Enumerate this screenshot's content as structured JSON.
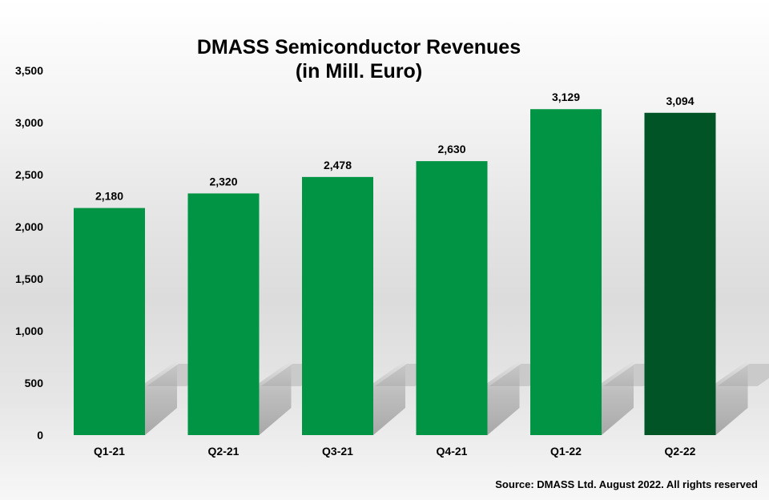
{
  "chart_data": {
    "type": "bar",
    "title": "DMASS Semiconductor Revenues",
    "subtitle": "(in Mill. Euro)",
    "categories": [
      "Q1-21",
      "Q2-21",
      "Q3-21",
      "Q4-21",
      "Q1-22",
      "Q2-22"
    ],
    "values": [
      2180,
      2320,
      2478,
      2630,
      3129,
      3094
    ],
    "value_labels": [
      "2,180",
      "2,320",
      "2,478",
      "2,630",
      "3,129",
      "3,094"
    ],
    "ylim": [
      0,
      3500
    ],
    "yticks": [
      0,
      500,
      1000,
      1500,
      2000,
      2500,
      3000,
      3500
    ],
    "ytick_labels": [
      "0",
      "500",
      "1,000",
      "1,500",
      "2,000",
      "2,500",
      "3,000",
      "3,500"
    ],
    "xlabel": "",
    "ylabel": "",
    "grid": false,
    "legend": "none",
    "colors": {
      "bar": "#009444",
      "highlight_bar": "#005426"
    },
    "highlight_index": 5
  },
  "footer": {
    "source": "Source: DMASS Ltd. August 2022. All rights reserved"
  }
}
